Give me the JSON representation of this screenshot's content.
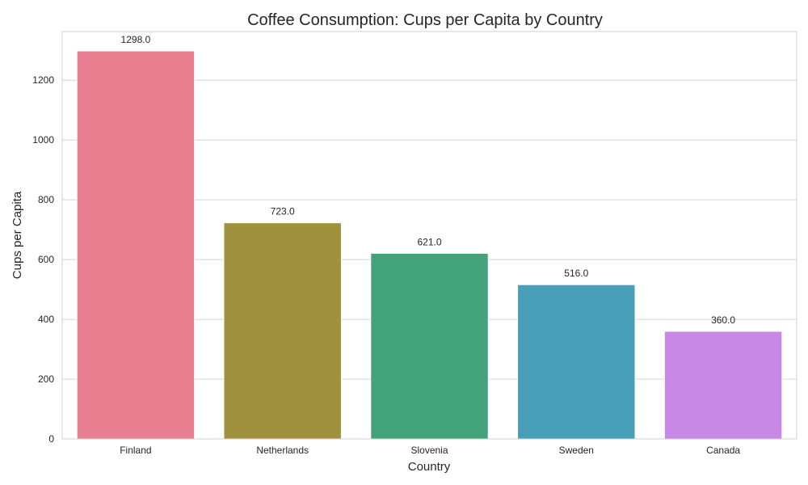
{
  "chart_data": {
    "type": "bar",
    "title": "Coffee Consumption: Cups per Capita by Country",
    "xlabel": "Country",
    "ylabel": "Cups per Capita",
    "categories": [
      "Finland",
      "Netherlands",
      "Slovenia",
      "Sweden",
      "Canada"
    ],
    "values": [
      1298.0,
      723.0,
      621.0,
      516.0,
      360.0
    ],
    "data_labels": [
      "1298.0",
      "723.0",
      "621.0",
      "516.0",
      "360.0"
    ],
    "colors": [
      "#e77f90",
      "#a0913f",
      "#42a37b",
      "#47a0b8",
      "#c788e6"
    ],
    "ylim": [
      0,
      1362.9
    ],
    "yticks": [
      0,
      200,
      400,
      600,
      800,
      1000,
      1200
    ],
    "grid": "horizontal",
    "legend": "none"
  }
}
